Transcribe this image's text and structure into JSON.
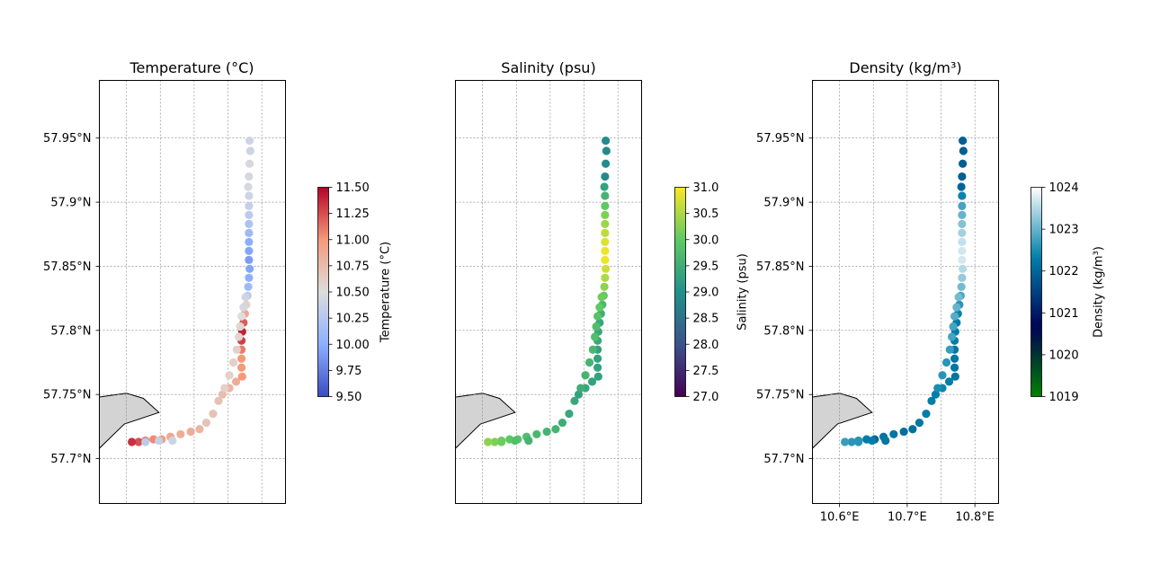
{
  "chart_data": [
    {
      "type": "scatter",
      "title": "Temperature (°C)",
      "variable": "temperature",
      "colormap": "coolwarm",
      "colorbar_label": "Temperature (°C)",
      "clim": [
        9.5,
        11.5
      ],
      "colorbar_ticks": [
        "9.50",
        "9.75",
        "10.00",
        "10.25",
        "10.50",
        "10.75",
        "11.00",
        "11.25",
        "11.50"
      ],
      "y_tick_labels": [
        "57.7°N",
        "57.75°N",
        "57.8°N",
        "57.85°N",
        "57.9°N",
        "57.95°N"
      ],
      "x_tick_labels": [],
      "show_y_ticks": true
    },
    {
      "type": "scatter",
      "title": "Salinity (psu)",
      "variable": "salinity",
      "colormap": "viridis",
      "colorbar_label": "Salinity (psu)",
      "clim": [
        27.0,
        31.0
      ],
      "colorbar_ticks": [
        "27.0",
        "27.5",
        "28.0",
        "28.5",
        "29.0",
        "29.5",
        "30.0",
        "30.5",
        "31.0"
      ],
      "y_tick_labels": [],
      "x_tick_labels": [],
      "show_y_ticks": false
    },
    {
      "type": "scatter",
      "title": "Density (kg/m³)",
      "variable": "density",
      "colormap": "ocean",
      "colorbar_label": "Density (kg/m³)",
      "clim": [
        1019,
        1024
      ],
      "colorbar_ticks": [
        "1019",
        "1020",
        "1021",
        "1022",
        "1023",
        "1024"
      ],
      "y_tick_labels": [
        "57.7°N",
        "57.75°N",
        "57.8°N",
        "57.85°N",
        "57.9°N",
        "57.95°N"
      ],
      "x_tick_labels": [
        "10.6°E",
        "10.7°E",
        "10.8°E"
      ],
      "show_y_ticks": true
    }
  ],
  "map": {
    "lon_range": [
      10.56,
      10.835
    ],
    "lat_range": [
      57.665,
      57.995
    ],
    "lat_ticks": [
      57.7,
      57.75,
      57.8,
      57.85,
      57.9,
      57.95
    ],
    "lon_gridlines": [
      10.6,
      10.65,
      10.7,
      10.75,
      10.8
    ],
    "lon_ticks": [
      10.6,
      10.7,
      10.8
    ],
    "grid": true,
    "land_color": "#d3d3d3",
    "land_polygon": [
      [
        10.56,
        57.748
      ],
      [
        10.6,
        57.751
      ],
      [
        10.625,
        57.747
      ],
      [
        10.648,
        57.736
      ],
      [
        10.597,
        57.727
      ],
      [
        10.56,
        57.708
      ]
    ]
  },
  "track": [
    {
      "lon": 10.782,
      "lat": 57.948,
      "temperature": 10.4,
      "salinity": 28.9,
      "density": 1021.9
    },
    {
      "lon": 10.783,
      "lat": 57.94,
      "temperature": 10.4,
      "salinity": 28.9,
      "density": 1021.9
    },
    {
      "lon": 10.782,
      "lat": 57.93,
      "temperature": 10.45,
      "salinity": 28.9,
      "density": 1021.9
    },
    {
      "lon": 10.781,
      "lat": 57.92,
      "temperature": 10.45,
      "salinity": 28.9,
      "density": 1021.9
    },
    {
      "lon": 10.78,
      "lat": 57.912,
      "temperature": 10.45,
      "salinity": 29.3,
      "density": 1022.0
    },
    {
      "lon": 10.781,
      "lat": 57.905,
      "temperature": 10.4,
      "salinity": 29.6,
      "density": 1022.4
    },
    {
      "lon": 10.781,
      "lat": 57.897,
      "temperature": 10.35,
      "salinity": 30.0,
      "density": 1022.8
    },
    {
      "lon": 10.781,
      "lat": 57.89,
      "temperature": 10.3,
      "salinity": 30.2,
      "density": 1023.0
    },
    {
      "lon": 10.781,
      "lat": 57.883,
      "temperature": 10.2,
      "salinity": 30.4,
      "density": 1023.2
    },
    {
      "lon": 10.781,
      "lat": 57.876,
      "temperature": 10.1,
      "salinity": 30.6,
      "density": 1023.4
    },
    {
      "lon": 10.781,
      "lat": 57.869,
      "temperature": 10.0,
      "salinity": 30.8,
      "density": 1023.6
    },
    {
      "lon": 10.781,
      "lat": 57.862,
      "temperature": 9.95,
      "salinity": 30.9,
      "density": 1023.7
    },
    {
      "lon": 10.781,
      "lat": 57.855,
      "temperature": 9.9,
      "salinity": 30.9,
      "density": 1023.7
    },
    {
      "lon": 10.782,
      "lat": 57.848,
      "temperature": 9.95,
      "salinity": 30.7,
      "density": 1023.5
    },
    {
      "lon": 10.781,
      "lat": 57.841,
      "temperature": 10.0,
      "salinity": 30.5,
      "density": 1023.3
    },
    {
      "lon": 10.78,
      "lat": 57.834,
      "temperature": 10.1,
      "salinity": 30.3,
      "density": 1023.1
    },
    {
      "lon": 10.779,
      "lat": 57.827,
      "temperature": 10.3,
      "salinity": 30.0,
      "density": 1022.8
    },
    {
      "lon": 10.777,
      "lat": 57.82,
      "temperature": 10.6,
      "salinity": 29.7,
      "density": 1022.6
    },
    {
      "lon": 10.775,
      "lat": 57.813,
      "temperature": 10.9,
      "salinity": 29.5,
      "density": 1022.4
    },
    {
      "lon": 10.773,
      "lat": 57.806,
      "temperature": 11.2,
      "salinity": 29.4,
      "density": 1022.3
    },
    {
      "lon": 10.771,
      "lat": 57.799,
      "temperature": 11.4,
      "salinity": 29.4,
      "density": 1022.3
    },
    {
      "lon": 10.77,
      "lat": 57.792,
      "temperature": 11.3,
      "salinity": 29.4,
      "density": 1022.3
    },
    {
      "lon": 10.77,
      "lat": 57.785,
      "temperature": 11.1,
      "salinity": 29.3,
      "density": 1022.2
    },
    {
      "lon": 10.77,
      "lat": 57.778,
      "temperature": 11.0,
      "salinity": 29.3,
      "density": 1022.2
    },
    {
      "lon": 10.77,
      "lat": 57.771,
      "temperature": 11.0,
      "salinity": 29.3,
      "density": 1022.2
    },
    {
      "lon": 10.771,
      "lat": 57.764,
      "temperature": 11.0,
      "salinity": 29.3,
      "density": 1022.2
    },
    {
      "lon": 10.762,
      "lat": 57.76,
      "temperature": 10.85,
      "salinity": 29.3,
      "density": 1022.3
    },
    {
      "lon": 10.752,
      "lat": 57.755,
      "temperature": 10.8,
      "salinity": 29.4,
      "density": 1022.4
    },
    {
      "lon": 10.742,
      "lat": 57.75,
      "temperature": 10.75,
      "salinity": 29.3,
      "density": 1022.3
    },
    {
      "lon": 10.736,
      "lat": 57.745,
      "temperature": 10.7,
      "salinity": 29.4,
      "density": 1022.3
    },
    {
      "lon": 10.745,
      "lat": 57.755,
      "temperature": 10.6,
      "salinity": 29.5,
      "density": 1022.5
    },
    {
      "lon": 10.752,
      "lat": 57.765,
      "temperature": 10.6,
      "salinity": 29.6,
      "density": 1022.6
    },
    {
      "lon": 10.758,
      "lat": 57.775,
      "temperature": 10.6,
      "salinity": 29.6,
      "density": 1022.6
    },
    {
      "lon": 10.763,
      "lat": 57.785,
      "temperature": 10.6,
      "salinity": 29.7,
      "density": 1022.7
    },
    {
      "lon": 10.766,
      "lat": 57.795,
      "temperature": 10.55,
      "salinity": 29.8,
      "density": 1022.8
    },
    {
      "lon": 10.768,
      "lat": 57.803,
      "temperature": 10.55,
      "salinity": 29.8,
      "density": 1022.8
    },
    {
      "lon": 10.77,
      "lat": 57.811,
      "temperature": 10.5,
      "salinity": 29.9,
      "density": 1022.9
    },
    {
      "lon": 10.773,
      "lat": 57.818,
      "temperature": 10.45,
      "salinity": 30.0,
      "density": 1023.0
    },
    {
      "lon": 10.776,
      "lat": 57.826,
      "temperature": 10.4,
      "salinity": 30.1,
      "density": 1023.1
    },
    {
      "lon": 10.728,
      "lat": 57.735,
      "temperature": 10.7,
      "salinity": 29.4,
      "density": 1022.3
    },
    {
      "lon": 10.718,
      "lat": 57.728,
      "temperature": 10.7,
      "salinity": 29.5,
      "density": 1022.2
    },
    {
      "lon": 10.708,
      "lat": 57.723,
      "temperature": 10.8,
      "salinity": 29.6,
      "density": 1022.1
    },
    {
      "lon": 10.695,
      "lat": 57.721,
      "temperature": 10.85,
      "salinity": 29.6,
      "density": 1022.1
    },
    {
      "lon": 10.68,
      "lat": 57.719,
      "temperature": 10.85,
      "salinity": 29.7,
      "density": 1022.2
    },
    {
      "lon": 10.665,
      "lat": 57.717,
      "temperature": 10.9,
      "salinity": 29.8,
      "density": 1022.2
    },
    {
      "lon": 10.652,
      "lat": 57.715,
      "temperature": 11.0,
      "salinity": 29.9,
      "density": 1022.0
    },
    {
      "lon": 10.64,
      "lat": 57.715,
      "temperature": 11.05,
      "salinity": 30.0,
      "density": 1022.3
    },
    {
      "lon": 10.628,
      "lat": 57.714,
      "temperature": 11.15,
      "salinity": 30.1,
      "density": 1022.5
    },
    {
      "lon": 10.618,
      "lat": 57.713,
      "temperature": 11.25,
      "salinity": 30.2,
      "density": 1022.6
    },
    {
      "lon": 10.608,
      "lat": 57.713,
      "temperature": 11.35,
      "salinity": 30.3,
      "density": 1022.7
    },
    {
      "lon": 10.628,
      "lat": 57.713,
      "temperature": 10.3,
      "salinity": 30.1,
      "density": 1022.6
    },
    {
      "lon": 10.648,
      "lat": 57.714,
      "temperature": 10.35,
      "salinity": 29.8,
      "density": 1022.3
    },
    {
      "lon": 10.668,
      "lat": 57.714,
      "temperature": 10.4,
      "salinity": 29.6,
      "density": 1022.2
    }
  ]
}
